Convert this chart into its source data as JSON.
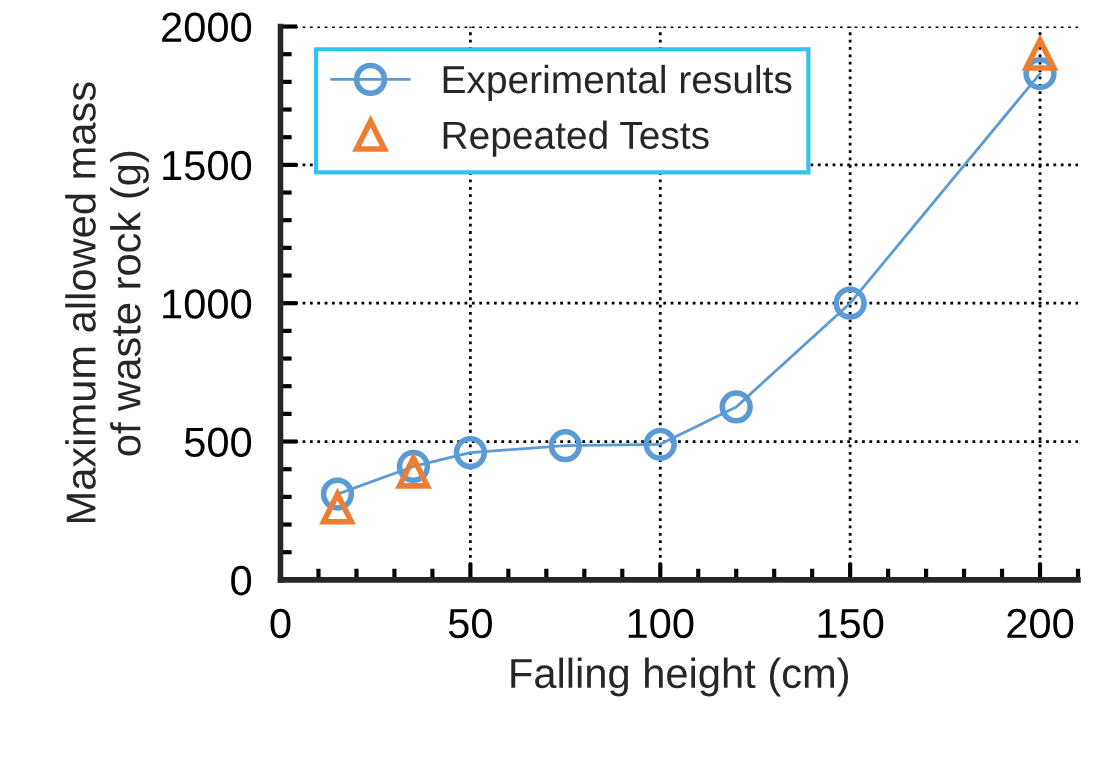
{
  "chart_data": {
    "type": "line",
    "xlabel": "Falling height (cm)",
    "ylabel": "Maximum allowed mass\nof waste rock (g)",
    "xlim": [
      0,
      210
    ],
    "xticks": [
      0,
      50,
      100,
      150,
      200
    ],
    "ylim": [
      0,
      2000
    ],
    "yticks": [
      0,
      500,
      1000,
      1500,
      2000
    ],
    "grid": true,
    "legend": "top left",
    "series": [
      {
        "name": "Experimental results",
        "marker": "circle",
        "color": "#5b9bd5",
        "x": [
          15,
          35,
          50,
          75,
          100,
          120,
          150,
          200
        ],
        "values": [
          310,
          410,
          460,
          485,
          490,
          625,
          1000,
          1830
        ]
      },
      {
        "name": "Repeated Tests",
        "type": "scatter",
        "marker": "triangle",
        "color": "#ed7d31",
        "x": [
          15,
          35,
          200
        ],
        "values": [
          260,
          390,
          1900
        ]
      }
    ]
  }
}
